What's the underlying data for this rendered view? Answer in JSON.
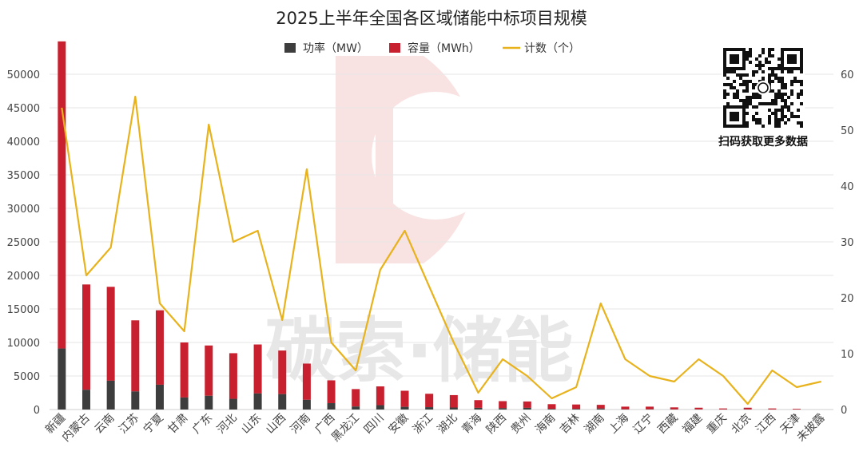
{
  "chart_data": {
    "type": "bar",
    "title": "2025上半年全国各区域储能中标项目规模",
    "categories": [
      "新疆",
      "内蒙古",
      "云南",
      "江苏",
      "宁夏",
      "甘肃",
      "广东",
      "河北",
      "山东",
      "山西",
      "河南",
      "广西",
      "黑龙江",
      "四川",
      "安徽",
      "浙江",
      "湖北",
      "青海",
      "陕西",
      "贵州",
      "海南",
      "吉林",
      "湖南",
      "上海",
      "辽宁",
      "西藏",
      "福建",
      "重庆",
      "北京",
      "江西",
      "天津",
      "未披露"
    ],
    "series": [
      {
        "name": "功率（MW）",
        "color": "#3d3d3d",
        "axis": "left",
        "stacked": true,
        "values": [
          9100,
          2950,
          4300,
          2700,
          3700,
          1800,
          2050,
          1600,
          2400,
          2300,
          1450,
          950,
          450,
          650,
          400,
          350,
          300,
          250,
          200,
          250,
          100,
          100,
          150,
          30,
          30,
          20,
          20,
          10,
          20,
          10,
          10,
          0
        ]
      },
      {
        "name": "容量（MWh）",
        "color": "#c8202e",
        "axis": "left",
        "stacked": true,
        "values": [
          45800,
          15700,
          14000,
          10600,
          11100,
          8200,
          7500,
          6800,
          7300,
          6500,
          5400,
          3400,
          2600,
          2800,
          2400,
          2000,
          1850,
          1150,
          1050,
          950,
          700,
          650,
          550,
          400,
          400,
          300,
          250,
          150,
          250,
          150,
          100,
          0
        ]
      },
      {
        "name": "计数（个）",
        "color": "#e8b21c",
        "axis": "right",
        "type": "line",
        "values": [
          54,
          24,
          29,
          56,
          19,
          14,
          51,
          30,
          32,
          16,
          43,
          12,
          7,
          25,
          32,
          22,
          12,
          3,
          9,
          6,
          2,
          4,
          19,
          9,
          6,
          5,
          9,
          6,
          1,
          7,
          4,
          5
        ]
      }
    ],
    "ylim": [
      0,
      50000
    ],
    "yticks": [
      0,
      5000,
      10000,
      15000,
      20000,
      25000,
      30000,
      35000,
      40000,
      45000,
      50000
    ],
    "y2lim": [
      0,
      60
    ],
    "y2ticks": [
      0,
      10,
      20,
      30,
      40,
      50,
      60
    ],
    "grid": true,
    "legend": "top-center"
  },
  "qr": {
    "caption": "扫码获取更多数据"
  },
  "watermark": {
    "text": "碳索·储能"
  }
}
